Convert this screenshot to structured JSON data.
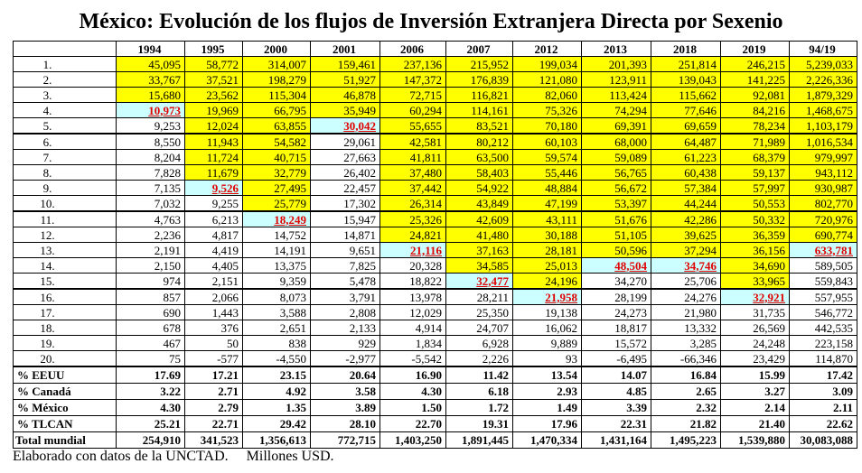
{
  "title": "México: Evolución de los flujos de Inversión Extranjera Directa por Sexenio",
  "table": {
    "columns": [
      "1994",
      "1995",
      "2000",
      "2001",
      "2006",
      "2007",
      "2012",
      "2013",
      "2018",
      "2019",
      "94/19"
    ],
    "rows": [
      {
        "label": "1.",
        "cells": [
          "45,095",
          "58,772",
          "314,007",
          "159,461",
          "237,136",
          "215,952",
          "199,034",
          "201,393",
          "251,814",
          "246,215",
          "5,239,033"
        ]
      },
      {
        "label": "2.",
        "cells": [
          "33,767",
          "37,521",
          "198,279",
          "51,927",
          "147,372",
          "176,839",
          "121,080",
          "123,911",
          "139,043",
          "141,225",
          "2,226,336"
        ]
      },
      {
        "label": "3.",
        "cells": [
          "15,680",
          "23,562",
          "115,304",
          "46,878",
          "72,715",
          "116,821",
          "82,060",
          "113,424",
          "115,662",
          "92,081",
          "1,879,329"
        ]
      },
      {
        "label": "4.",
        "cells": [
          "10,973",
          "19,969",
          "66,795",
          "35,949",
          "60,294",
          "114,161",
          "75,326",
          "74,294",
          "77,646",
          "84,216",
          "1,468,675"
        ]
      },
      {
        "label": "5.",
        "cells": [
          "9,253",
          "12,024",
          "63,855",
          "30,042",
          "55,655",
          "83,521",
          "70,180",
          "69,391",
          "69,659",
          "78,234",
          "1,103,179"
        ]
      },
      {
        "label": "6.",
        "cells": [
          "8,550",
          "11,943",
          "54,582",
          "29,061",
          "42,581",
          "80,212",
          "60,103",
          "68,000",
          "64,487",
          "71,989",
          "1,016,534"
        ]
      },
      {
        "label": "7.",
        "cells": [
          "8,204",
          "11,724",
          "40,715",
          "27,663",
          "41,811",
          "63,500",
          "59,574",
          "59,089",
          "61,223",
          "68,379",
          "979,997"
        ]
      },
      {
        "label": "8.",
        "cells": [
          "7,828",
          "11,679",
          "32,779",
          "26,402",
          "37,480",
          "58,403",
          "55,446",
          "56,765",
          "60,438",
          "59,137",
          "943,112"
        ]
      },
      {
        "label": "9.",
        "cells": [
          "7,135",
          "9,526",
          "27,495",
          "22,457",
          "37,442",
          "54,922",
          "48,884",
          "56,672",
          "57,384",
          "57,997",
          "930,987"
        ]
      },
      {
        "label": "10.",
        "cells": [
          "7,032",
          "9,255",
          "25,779",
          "17,302",
          "26,314",
          "43,849",
          "47,199",
          "53,397",
          "44,244",
          "50,553",
          "802,770"
        ]
      },
      {
        "label": "11.",
        "cells": [
          "4,763",
          "6,213",
          "18,249",
          "15,947",
          "25,326",
          "42,609",
          "43,111",
          "51,676",
          "42,286",
          "50,332",
          "720,976"
        ]
      },
      {
        "label": "12.",
        "cells": [
          "2,236",
          "4,817",
          "14,752",
          "14,871",
          "24,821",
          "41,480",
          "30,188",
          "51,105",
          "39,625",
          "36,359",
          "690,774"
        ]
      },
      {
        "label": "13.",
        "cells": [
          "2,191",
          "4,419",
          "14,191",
          "9,651",
          "21,116",
          "37,163",
          "28,181",
          "50,596",
          "37,294",
          "36,156",
          "633,781"
        ]
      },
      {
        "label": "14.",
        "cells": [
          "2,150",
          "4,405",
          "13,375",
          "7,825",
          "20,328",
          "34,585",
          "25,013",
          "48,504",
          "34,746",
          "34,690",
          "589,505"
        ]
      },
      {
        "label": "15.",
        "cells": [
          "974",
          "2,151",
          "9,359",
          "5,478",
          "18,822",
          "32,477",
          "24,196",
          "34,270",
          "25,706",
          "33,965",
          "559,843"
        ]
      },
      {
        "label": "16.",
        "cells": [
          "857",
          "2,066",
          "8,073",
          "3,791",
          "13,978",
          "28,211",
          "21,958",
          "28,199",
          "24,276",
          "32,921",
          "557,955"
        ]
      },
      {
        "label": "17.",
        "cells": [
          "690",
          "1,443",
          "3,588",
          "2,808",
          "12,029",
          "25,350",
          "19,138",
          "24,273",
          "21,980",
          "31,735",
          "546,772"
        ]
      },
      {
        "label": "18.",
        "cells": [
          "678",
          "376",
          "2,651",
          "2,133",
          "4,914",
          "24,707",
          "16,062",
          "18,817",
          "13,332",
          "26,569",
          "442,535"
        ]
      },
      {
        "label": "19.",
        "cells": [
          "467",
          "50",
          "838",
          "929",
          "1,834",
          "6,928",
          "9,889",
          "15,572",
          "3,285",
          "24,248",
          "223,158"
        ]
      },
      {
        "label": "20.",
        "cells": [
          "75",
          "-577",
          "-4,550",
          "-2,977",
          "-5,542",
          "2,226",
          "93",
          "-6,495",
          "-66,346",
          "23,429",
          "114,870"
        ]
      }
    ],
    "summary": [
      {
        "label": "% EEUU",
        "cells": [
          "17.69",
          "17.21",
          "23.15",
          "20.64",
          "16.90",
          "11.42",
          "13.54",
          "14.07",
          "16.84",
          "15.99",
          "17.42"
        ]
      },
      {
        "label": "% Canadá",
        "cells": [
          "3.22",
          "2.71",
          "4.92",
          "3.58",
          "4.30",
          "6.18",
          "2.93",
          "4.85",
          "2.65",
          "3.27",
          "3.09"
        ]
      },
      {
        "label": "% México",
        "cells": [
          "4.30",
          "2.79",
          "1.35",
          "3.89",
          "1.50",
          "1.72",
          "1.49",
          "3.39",
          "2.32",
          "2.14",
          "2.11"
        ]
      },
      {
        "label": "% TLCAN",
        "cells": [
          "25.21",
          "22.71",
          "29.42",
          "28.10",
          "22.70",
          "19.31",
          "17.96",
          "22.31",
          "21.82",
          "21.40",
          "22.62"
        ]
      },
      {
        "label": "Total mundial",
        "cells": [
          "254,910",
          "341,523",
          "1,356,613",
          "772,715",
          "1,403,250",
          "1,891,445",
          "1,470,334",
          "1,431,164",
          "1,495,223",
          "1,539,880",
          "30,083,088"
        ]
      }
    ],
    "highlight": {
      "top_color": "#ffff00",
      "mexico_color": "#ccffff",
      "mexico_text_color": "#e00000",
      "mexico_rank": [
        4,
        9,
        11,
        5,
        13,
        15,
        16,
        14,
        14,
        16,
        13
      ]
    }
  },
  "footer": "Elaborado con datos de la UNCTAD.     Millones USD."
}
